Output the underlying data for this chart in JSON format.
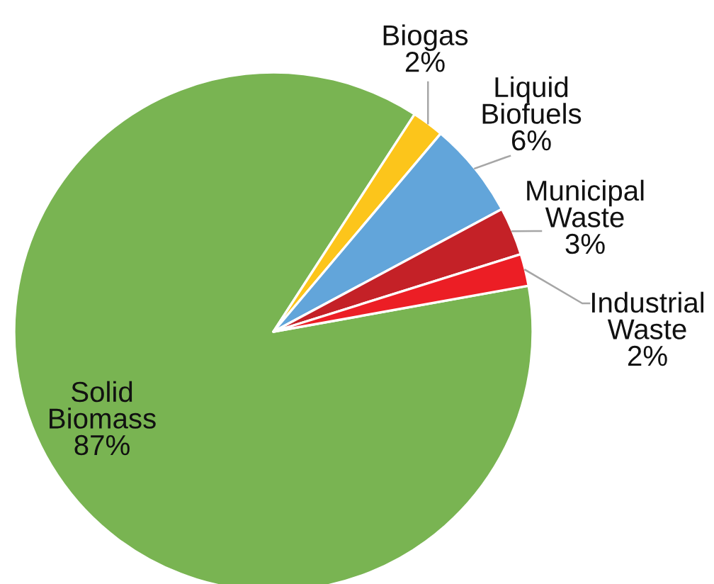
{
  "chart_data": {
    "type": "pie",
    "categories": [
      "Solid Biomass",
      "Biogas",
      "Liquid Biofuels",
      "Municipal Waste",
      "Industrial Waste"
    ],
    "values": [
      87,
      2,
      6,
      3,
      2
    ],
    "value_labels": [
      "87%",
      "2%",
      "6%",
      "3%",
      "2%"
    ],
    "colors": [
      "#79b452",
      "#fcc51b",
      "#62a5da",
      "#c42127",
      "#ec1e25"
    ]
  }
}
